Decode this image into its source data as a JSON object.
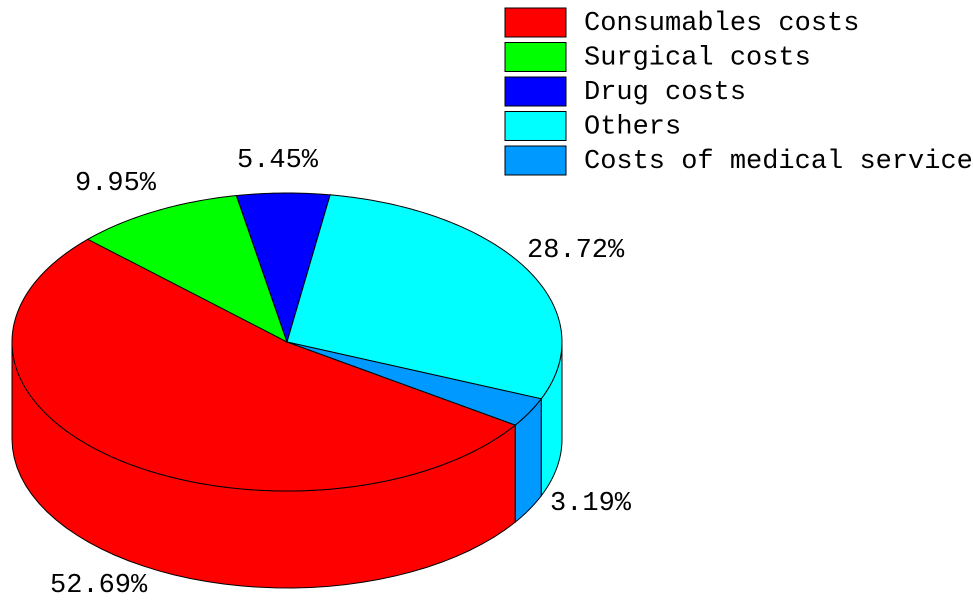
{
  "chart_data": {
    "type": "pie",
    "categories": [
      "Consumables costs",
      "Surgical costs",
      "Drug costs",
      "Others",
      "Costs of medical service"
    ],
    "values": [
      52.69,
      9.95,
      5.45,
      28.72,
      3.19
    ],
    "value_labels": [
      "52.69%",
      "9.95%",
      "5.45%",
      "28.72%",
      "3.19%"
    ],
    "colors": [
      "#ff0000",
      "#00ff00",
      "#0000ff",
      "#00ffff",
      "#0099ff"
    ],
    "legend": "upper right"
  }
}
